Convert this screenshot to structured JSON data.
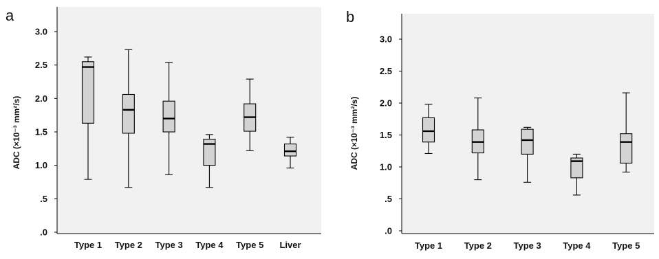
{
  "chart_data": [
    {
      "panel": "a",
      "type": "boxplot",
      "ylabel": "ADC (×10⁻³ mm²/s)",
      "ylim": [
        0,
        3.3
      ],
      "yticks": [
        ".0",
        ".5",
        "1.0",
        "1.5",
        "2.0",
        "2.5",
        "3.0"
      ],
      "categories": [
        "Type 1",
        "Type 2",
        "Type 3",
        "Type 4",
        "Type 5",
        "Liver"
      ],
      "boxes": [
        {
          "min": 0.79,
          "q1": 1.63,
          "median": 2.47,
          "q3": 2.55,
          "max": 2.62
        },
        {
          "min": 0.67,
          "q1": 1.48,
          "median": 1.83,
          "q3": 2.06,
          "max": 2.73
        },
        {
          "min": 0.86,
          "q1": 1.5,
          "median": 1.7,
          "q3": 1.96,
          "max": 2.54
        },
        {
          "min": 0.67,
          "q1": 1.0,
          "median": 1.32,
          "q3": 1.39,
          "max": 1.46
        },
        {
          "min": 1.22,
          "q1": 1.51,
          "median": 1.72,
          "q3": 1.92,
          "max": 2.29
        },
        {
          "min": 0.96,
          "q1": 1.14,
          "median": 1.21,
          "q3": 1.32,
          "max": 1.42
        }
      ]
    },
    {
      "panel": "b",
      "type": "boxplot",
      "ylabel": "ADC (×10⁻³ mm²/s)",
      "ylim": [
        0,
        3.3
      ],
      "yticks": [
        ".0",
        ".5",
        "1.0",
        "1.5",
        "2.0",
        "2.5",
        "3.0"
      ],
      "categories": [
        "Type 1",
        "Type 2",
        "Type 3",
        "Type 4",
        "Type 5"
      ],
      "boxes": [
        {
          "min": 1.21,
          "q1": 1.39,
          "median": 1.56,
          "q3": 1.77,
          "max": 1.98
        },
        {
          "min": 0.8,
          "q1": 1.22,
          "median": 1.39,
          "q3": 1.58,
          "max": 2.08
        },
        {
          "min": 0.76,
          "q1": 1.2,
          "median": 1.42,
          "q3": 1.59,
          "max": 1.62
        },
        {
          "min": 0.56,
          "q1": 0.83,
          "median": 1.09,
          "q3": 1.14,
          "max": 1.2
        },
        {
          "min": 0.92,
          "q1": 1.06,
          "median": 1.39,
          "q3": 1.52,
          "max": 2.16
        }
      ]
    }
  ]
}
